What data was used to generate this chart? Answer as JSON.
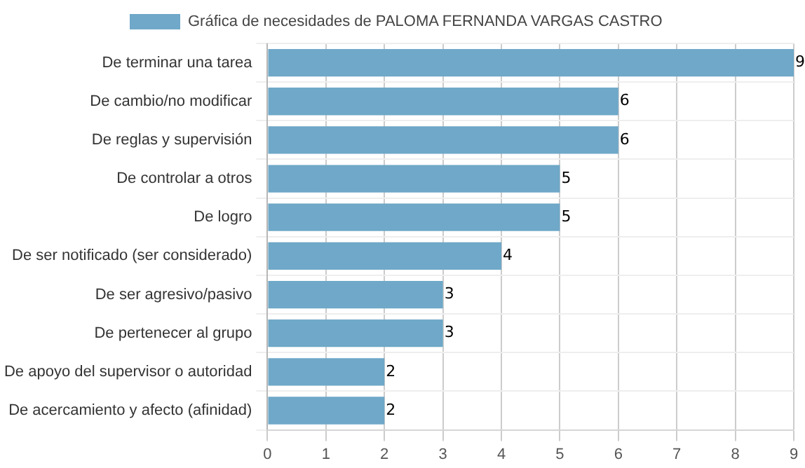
{
  "chart_data": {
    "type": "bar",
    "orientation": "horizontal",
    "categories": [
      "De terminar una tarea",
      "De cambio/no modificar",
      "De reglas y supervisión",
      "De controlar a otros",
      "De logro",
      "De ser notificado (ser considerado)",
      "De ser agresivo/pasivo",
      "De pertenecer al grupo",
      "De apoyo del supervisor o autoridad",
      "De acercamiento y afecto (afinidad)"
    ],
    "series": [
      {
        "name": "Gráfica de necesidades de PALOMA FERNANDA VARGAS CASTRO",
        "color": "#6fa8c8",
        "values": [
          9,
          6,
          6,
          5,
          5,
          4,
          3,
          3,
          2,
          2
        ]
      }
    ],
    "xlim": [
      0,
      9
    ],
    "xticks": [
      0,
      1,
      2,
      3,
      4,
      5,
      6,
      7,
      8,
      9
    ],
    "grid": true,
    "legend": "top",
    "data_labels": true
  }
}
